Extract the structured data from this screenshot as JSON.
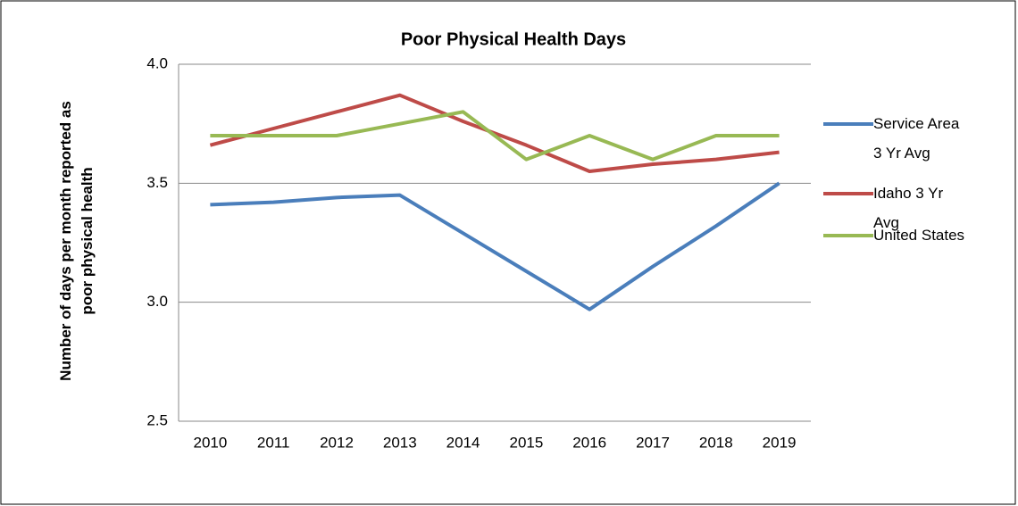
{
  "chart_data": {
    "type": "line",
    "title": "Poor Physical Health Days",
    "y_label": "Number of days per month reported as poor physical health",
    "categories": [
      "2010",
      "2011",
      "2012",
      "2013",
      "2014",
      "2015",
      "2016",
      "2017",
      "2018",
      "2019"
    ],
    "series": [
      {
        "name": "Service Area 3 Yr Avg",
        "color": "#4a7ebb",
        "values": [
          3.41,
          3.42,
          3.44,
          3.45,
          3.29,
          3.13,
          2.97,
          3.15,
          3.32,
          3.5
        ]
      },
      {
        "name": "Idaho 3 Yr Avg",
        "color": "#be4b48",
        "values": [
          3.66,
          3.73,
          3.8,
          3.87,
          3.76,
          3.66,
          3.55,
          3.58,
          3.6,
          3.63
        ]
      },
      {
        "name": "United States",
        "color": "#98b954",
        "values": [
          3.7,
          3.7,
          3.7,
          3.75,
          3.8,
          3.6,
          3.7,
          3.6,
          3.7,
          3.7
        ]
      }
    ],
    "ylim": [
      2.5,
      4
    ],
    "yticks": [
      2.5,
      {
        "value": 3,
        "label": "3.0"
      },
      3.5,
      {
        "value": 4,
        "label": "4.0"
      }
    ],
    "grid": true,
    "legend": "right"
  }
}
